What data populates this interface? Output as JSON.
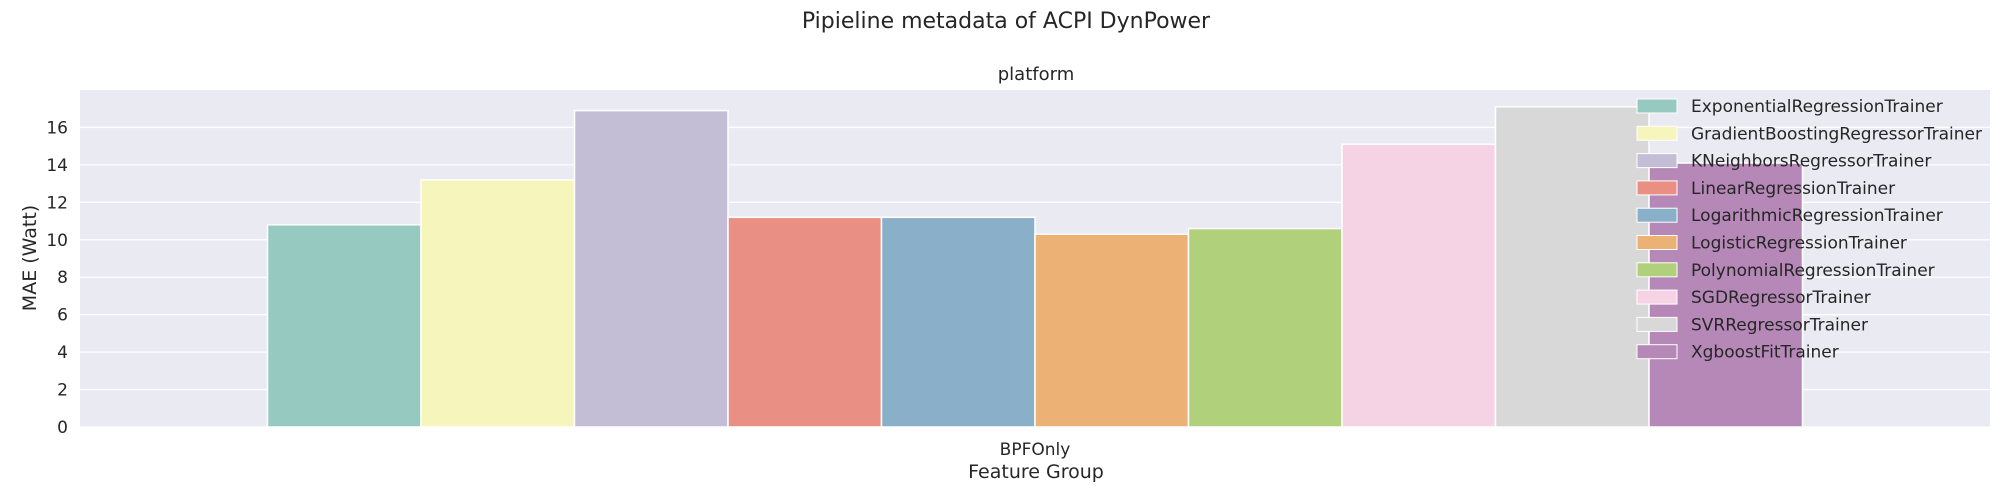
{
  "chart_data": {
    "type": "bar",
    "title": "Pipieline metadata of ACPI DynPower",
    "subtitle": "platform",
    "xlabel": "Feature Group",
    "ylabel": "MAE (Watt)",
    "categories": [
      "BPFOnly"
    ],
    "ylim": [
      0,
      18
    ],
    "yticks": [
      0,
      2,
      4,
      6,
      8,
      10,
      12,
      14,
      16
    ],
    "grid": true,
    "legend_position": "top-right",
    "series": [
      {
        "name": "ExponentialRegressionTrainer",
        "values": [
          10.8
        ],
        "color": "#96cac0"
      },
      {
        "name": "GradientBoostingRegressorTrainer",
        "values": [
          13.2
        ],
        "color": "#f6f6bc"
      },
      {
        "name": "KNeighborsRegressorTrainer",
        "values": [
          16.9
        ],
        "color": "#c3bed6"
      },
      {
        "name": "LinearRegressionTrainer",
        "values": [
          11.2
        ],
        "color": "#ea8f83"
      },
      {
        "name": "LogarithmicRegressionTrainer",
        "values": [
          11.2
        ],
        "color": "#8aafc9"
      },
      {
        "name": "LogisticRegressionTrainer",
        "values": [
          10.3
        ],
        "color": "#ebb175"
      },
      {
        "name": "PolynomialRegressionTrainer",
        "values": [
          10.6
        ],
        "color": "#b1d07b"
      },
      {
        "name": "SGDRegressorTrainer",
        "values": [
          15.1
        ],
        "color": "#f5d3e5"
      },
      {
        "name": "SVRRegressorTrainer",
        "values": [
          17.1
        ],
        "color": "#d8d8d8"
      },
      {
        "name": "XgboostFitTrainer",
        "values": [
          14.1
        ],
        "color": "#b588b7"
      }
    ]
  }
}
